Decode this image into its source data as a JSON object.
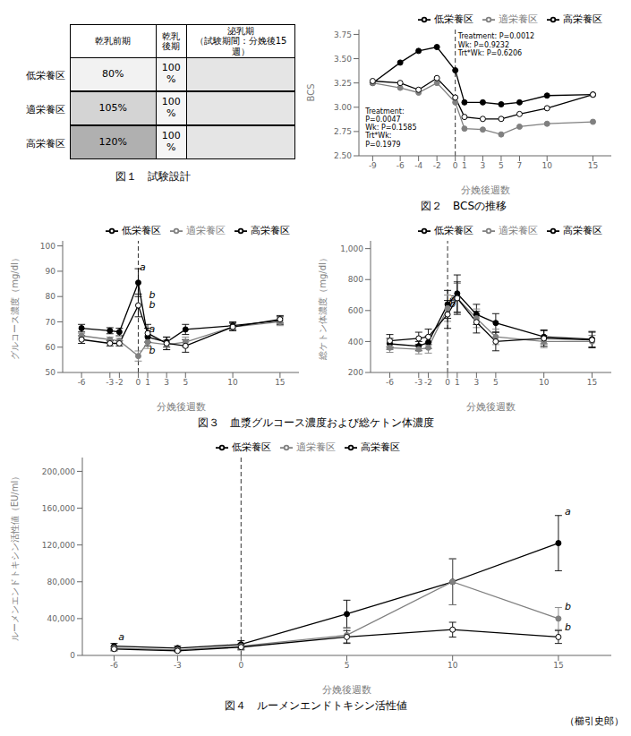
{
  "chart_data": [
    {
      "type": "table",
      "title": "図１　試験設計",
      "categories": [
        "低栄養区",
        "適栄養区",
        "高栄養区"
      ],
      "data_labels": true,
      "series": [
        {
          "name": "乾乳前期",
          "values": [
            80,
            105,
            120
          ],
          "value_labels": [
            "80%",
            "105%",
            "120%"
          ],
          "colors": [
            "#f2f2f2",
            "#d4d4d4",
            "#b0b0b0"
          ]
        },
        {
          "name": "乾乳\n後期",
          "values": [
            100,
            100,
            100
          ],
          "value_labels": [
            "100\n%",
            "100\n%",
            "100\n%"
          ],
          "color": "#f5f5f5"
        },
        {
          "name": "泌乳期\n（試験期間：分娩後15週）",
          "values": [
            null,
            null,
            null
          ],
          "color": "#e5e5e5"
        }
      ]
    },
    {
      "type": "line",
      "title": "図２　BCSの推移",
      "x_label": "分娩後週数",
      "y_label": "BCS",
      "grid": false,
      "legend": "top-right",
      "xlim": [
        -10.5,
        17
      ],
      "ylim": [
        2.5,
        3.8
      ],
      "xticks": [
        -9,
        -6,
        -4,
        -2,
        0,
        1,
        3,
        5,
        7,
        10,
        15
      ],
      "yticks": [
        {
          "value": 2.5,
          "label": "2.50"
        },
        {
          "value": 2.75,
          "label": "2.75"
        },
        {
          "value": 3.0,
          "label": "3.00"
        },
        {
          "value": 3.25,
          "label": "3.25"
        },
        {
          "value": 3.5,
          "label": "3.50"
        },
        {
          "value": 3.75,
          "label": "3.75"
        }
      ],
      "x": [
        -9,
        -6,
        -4,
        -2,
        0,
        1,
        3,
        5,
        7,
        10,
        15
      ],
      "series": [
        {
          "name": "高栄養区",
          "color": "#000000",
          "marker": "circle",
          "values": [
            3.25,
            3.46,
            3.58,
            3.62,
            3.38,
            3.05,
            3.05,
            3.03,
            3.05,
            3.12,
            3.13
          ]
        },
        {
          "name": "適栄養区",
          "color": "#808080",
          "marker": "circle",
          "values": [
            3.25,
            3.2,
            3.15,
            3.25,
            3.05,
            2.78,
            2.77,
            2.72,
            2.8,
            2.83,
            2.85
          ]
        },
        {
          "name": "低栄養区",
          "color": "#000000",
          "marker": "open_circle",
          "values": [
            3.27,
            3.25,
            3.18,
            3.3,
            3.1,
            2.9,
            2.88,
            2.88,
            2.93,
            2.99,
            3.13
          ]
        }
      ],
      "reference_lines": [
        {
          "x": 0,
          "line_style": "dashed"
        }
      ],
      "annotations": [
        {
          "text": "Treatment:\nP=0.0047\nWk: P=0.1585\nTrt*Wk:\nP=0.1979",
          "x": -9.8,
          "y": 2.99
        },
        {
          "text": "Treatment: P=0.0012\nWk: P=0.9232\nTrt*Wk: P=0.6206",
          "x": 0.3,
          "y": 3.76
        }
      ]
    },
    {
      "type": "line",
      "title": "図３　血漿グルコース濃度および総ケトン体濃度",
      "x_label": "分娩後週数",
      "y_label": "グルコース濃度（mg/dl）",
      "grid": false,
      "legend": "top-right",
      "xlim": [
        -8,
        17
      ],
      "ylim": [
        50,
        102
      ],
      "xticks": [
        -6,
        -3,
        -2,
        0,
        1,
        3,
        5,
        10,
        15
      ],
      "yticks": [
        50,
        60,
        70,
        80,
        90,
        100
      ],
      "x": [
        -6,
        -3,
        -2,
        0,
        1,
        3,
        5,
        10,
        15
      ],
      "series": [
        {
          "name": "高栄養区",
          "color": "#000000",
          "marker": "circle",
          "values": [
            67.5,
            66.5,
            66.0,
            85.5,
            64.0,
            62.0,
            67.0,
            68.5,
            70.5
          ],
          "errors": [
            1.5,
            1.2,
            1.5,
            5.5,
            3.5,
            2.0,
            2.0,
            1.5,
            1.5
          ]
        },
        {
          "name": "適栄養区",
          "color": "#808080",
          "marker": "circle",
          "values": [
            64.5,
            63.0,
            62.5,
            56.5,
            62.0,
            61.0,
            62.0,
            68.0,
            70.0
          ],
          "errors": [
            1.0,
            1.0,
            1.0,
            2.0,
            2.5,
            2.0,
            2.0,
            1.5,
            1.5
          ]
        },
        {
          "name": "低栄養区",
          "color": "#000000",
          "marker": "open_circle",
          "values": [
            63.0,
            61.5,
            61.5,
            76.5,
            65.5,
            61.5,
            60.5,
            68.0,
            71.0
          ],
          "errors": [
            1.5,
            1.0,
            1.0,
            4.5,
            3.5,
            2.5,
            2.5,
            1.5,
            1.5
          ]
        }
      ],
      "reference_lines": [
        {
          "x": 0,
          "line_style": "dashed"
        }
      ],
      "annotations": [
        {
          "text": "a",
          "x": 0.15,
          "y": 90.5
        },
        {
          "text": "b",
          "x": 1.15,
          "y": 79.5
        },
        {
          "text": "b",
          "x": 1.15,
          "y": 75.5
        },
        {
          "text": "a",
          "x": 1.15,
          "y": 66.0
        },
        {
          "text": "b",
          "x": 1.15,
          "y": 57.5
        }
      ]
    },
    {
      "type": "line",
      "x_label": "分娩後週数",
      "y_label": "総ケトン体濃度（mg/dl）",
      "grid": false,
      "legend": "top-right",
      "xlim": [
        -8,
        17
      ],
      "ylim": [
        200,
        1050
      ],
      "xticks": [
        -6,
        -3,
        -2,
        0,
        1,
        3,
        5,
        10,
        15
      ],
      "yticks": [
        200,
        400,
        600,
        800,
        {
          "value": 1000,
          "label": "1,000"
        }
      ],
      "x": [
        -6,
        -3,
        -2,
        0,
        1,
        3,
        5,
        10,
        15
      ],
      "series": [
        {
          "name": "高栄養区",
          "color": "#000000",
          "marker": "circle",
          "values": [
            385,
            370,
            395,
            640,
            710,
            575,
            520,
            430,
            415
          ],
          "errors": [
            35,
            30,
            40,
            90,
            120,
            65,
            60,
            45,
            50
          ]
        },
        {
          "name": "適栄養区",
          "color": "#808080",
          "marker": "circle",
          "values": [
            360,
            350,
            360,
            615,
            680,
            550,
            430,
            400,
            400
          ],
          "errors": [
            30,
            30,
            35,
            85,
            95,
            60,
            50,
            40,
            40
          ]
        },
        {
          "name": "低栄養区",
          "color": "#000000",
          "marker": "open_circle",
          "values": [
            405,
            420,
            430,
            575,
            680,
            525,
            400,
            420,
            410
          ],
          "errors": [
            40,
            40,
            50,
            90,
            105,
            70,
            60,
            50,
            50
          ]
        }
      ],
      "reference_lines": [
        {
          "x": 0,
          "line_style": "dashed"
        }
      ],
      "annotations": [
        {
          "text": "a",
          "x": 0.2,
          "y": 665
        },
        {
          "text": "b",
          "x": 0.2,
          "y": 625
        }
      ]
    },
    {
      "type": "line",
      "title": "図４　ルーメンエンドトキシン活性値",
      "x_label": "分娩後週数",
      "y_label": "ルーメンエンドトキシン活性値（EU/ml）",
      "grid": false,
      "legend": "top",
      "xlim": [
        -7.5,
        17.5
      ],
      "ylim": [
        0,
        215000
      ],
      "xticks": [
        -6,
        -3,
        0,
        5,
        10,
        15
      ],
      "yticks": [
        0,
        {
          "value": 40000,
          "label": "40,000"
        },
        {
          "value": 80000,
          "label": "80,000"
        },
        {
          "value": 120000,
          "label": "120,000"
        },
        {
          "value": 160000,
          "label": "160,000"
        },
        {
          "value": 200000,
          "label": "200,000"
        }
      ],
      "x": [
        -6,
        -3,
        0,
        5,
        10,
        15
      ],
      "series": [
        {
          "name": "高栄養区",
          "color": "#000000",
          "marker": "circle",
          "values": [
            10000,
            8000,
            12000,
            45000,
            80000,
            122000
          ],
          "errors": [
            3000,
            2000,
            4000,
            15000,
            25000,
            30000
          ]
        },
        {
          "name": "適栄養区",
          "color": "#808080",
          "marker": "circle",
          "values": [
            8000,
            6000,
            10000,
            22000,
            80000,
            40000
          ],
          "errors": [
            2000,
            1500,
            3000,
            8000,
            25000,
            12000
          ]
        },
        {
          "name": "低栄養区",
          "color": "#000000",
          "marker": "open_circle",
          "values": [
            7000,
            5000,
            9000,
            20000,
            28000,
            20000
          ],
          "errors": [
            2000,
            1000,
            3000,
            7000,
            8000,
            7000
          ]
        }
      ],
      "reference_lines": [
        {
          "x": 0,
          "line_style": "dashed"
        }
      ],
      "annotations": [
        {
          "text": "a",
          "x": 15.3,
          "y": 153000
        },
        {
          "text": "b",
          "x": 15.3,
          "y": 50000
        },
        {
          "text": "b",
          "x": 15.3,
          "y": 27000
        },
        {
          "text": "a",
          "x": -5.8,
          "y": 17000
        }
      ]
    }
  ],
  "attribution": "（櫛引史郎）"
}
